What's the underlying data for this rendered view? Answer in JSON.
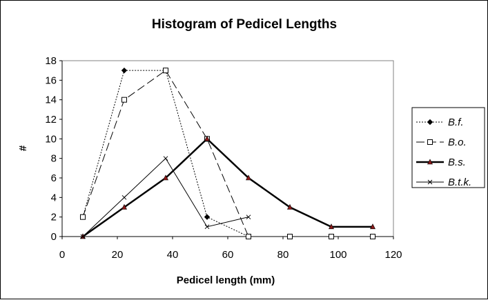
{
  "chart_data": {
    "type": "line",
    "title": "Histogram of Pedicel Lengths",
    "xlabel": "Pedicel length (mm)",
    "ylabel": "#",
    "xlim": [
      0,
      120
    ],
    "ylim": [
      0,
      18
    ],
    "x_ticks": [
      0,
      20,
      40,
      60,
      80,
      100,
      120
    ],
    "y_ticks": [
      0,
      2,
      4,
      6,
      8,
      10,
      12,
      14,
      16,
      18
    ],
    "grid": false,
    "legend_position": "right",
    "series": [
      {
        "name": "B.f.",
        "color": "#000000",
        "marker": "diamond-filled",
        "line_style": "dotted",
        "points": [
          [
            7.5,
            2
          ],
          [
            22.5,
            17
          ],
          [
            37.5,
            17
          ],
          [
            52.5,
            2
          ],
          [
            67.5,
            0
          ]
        ]
      },
      {
        "name": "B.o.",
        "color": "#000000",
        "marker": "square-open",
        "line_style": "long-dash",
        "points": [
          [
            7.5,
            2
          ],
          [
            22.5,
            14
          ],
          [
            37.5,
            17
          ],
          [
            52.5,
            10
          ],
          [
            67.5,
            0
          ],
          [
            82.5,
            0
          ],
          [
            97.5,
            0
          ],
          [
            112.5,
            0
          ]
        ]
      },
      {
        "name": "B.s.",
        "color": "#000000",
        "marker_color": "#8b1a1a",
        "marker": "triangle-filled",
        "line_style": "solid-thick",
        "points": [
          [
            7.5,
            0
          ],
          [
            22.5,
            3
          ],
          [
            37.5,
            6
          ],
          [
            52.5,
            10
          ],
          [
            67.5,
            6
          ],
          [
            82.5,
            3
          ],
          [
            97.5,
            1
          ],
          [
            112.5,
            1
          ]
        ]
      },
      {
        "name": "B.t.k.",
        "color": "#000000",
        "marker": "x",
        "line_style": "solid-thin",
        "points": [
          [
            7.5,
            0
          ],
          [
            22.5,
            4
          ],
          [
            37.5,
            8
          ],
          [
            52.5,
            1
          ],
          [
            67.5,
            2
          ]
        ]
      }
    ]
  }
}
